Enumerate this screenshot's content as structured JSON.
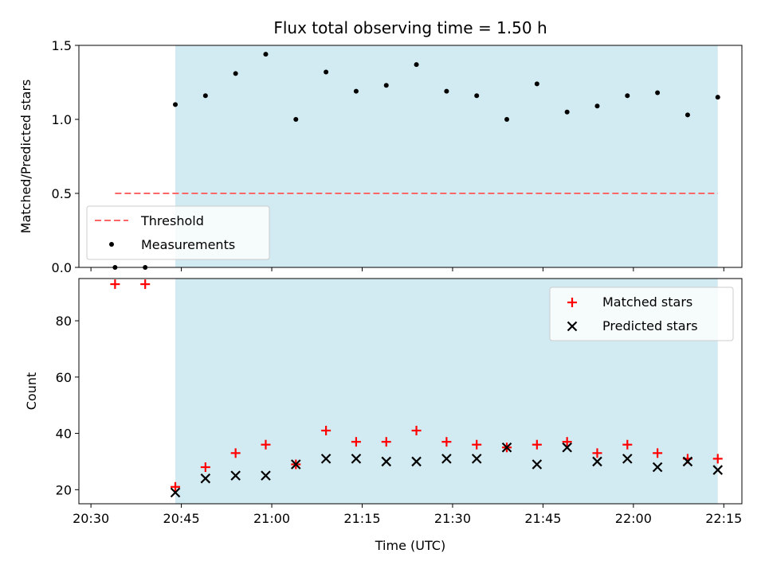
{
  "figure": {
    "title": "Flux total observing time = 1.50 h",
    "xlabel": "Time (UTC)"
  },
  "colors": {
    "span": "#add8e6",
    "threshold": "#ff6666",
    "measurements": "#000000",
    "matched": "#ff0000",
    "predicted": "#000000"
  },
  "chart_data": [
    {
      "type": "scatter",
      "ylabel": "Matched/Predicted stars",
      "xlim": [
        "20:28",
        "22:18"
      ],
      "ylim": [
        0,
        1.5
      ],
      "yticks": [
        "0.0",
        "0.5",
        "1.0",
        "1.5"
      ],
      "xticks": [
        "20:30",
        "20:45",
        "21:00",
        "21:15",
        "21:30",
        "21:45",
        "22:00",
        "22:15"
      ],
      "shaded_span": [
        "20:44",
        "22:14"
      ],
      "threshold": {
        "name": "Threshold",
        "value": 0.5,
        "x": [
          "20:34",
          "22:14"
        ]
      },
      "series": [
        {
          "name": "Measurements",
          "x": [
            "20:34",
            "20:39",
            "20:44",
            "20:49",
            "20:54",
            "20:59",
            "21:04",
            "21:09",
            "21:14",
            "21:19",
            "21:24",
            "21:29",
            "21:34",
            "21:39",
            "21:44",
            "21:49",
            "21:54",
            "21:59",
            "22:04",
            "22:09",
            "22:14"
          ],
          "values": [
            0.0,
            0.0,
            1.1,
            1.16,
            1.31,
            1.44,
            1.0,
            1.32,
            1.19,
            1.23,
            1.37,
            1.19,
            1.16,
            1.0,
            1.24,
            1.05,
            1.09,
            1.16,
            1.18,
            1.03,
            1.15
          ]
        }
      ],
      "legend": {
        "position": "lower-left",
        "entries": [
          "Threshold",
          "Measurements"
        ]
      }
    },
    {
      "type": "scatter",
      "ylabel": "Count",
      "xlim": [
        "20:28",
        "22:18"
      ],
      "ylim": [
        15,
        95
      ],
      "yticks": [
        "20",
        "40",
        "60",
        "80"
      ],
      "xticks": [
        "20:30",
        "20:45",
        "21:00",
        "21:15",
        "21:30",
        "21:45",
        "22:00",
        "22:15"
      ],
      "shaded_span": [
        "20:44",
        "22:14"
      ],
      "series": [
        {
          "name": "Matched stars",
          "x": [
            "20:34",
            "20:39",
            "20:44",
            "20:49",
            "20:54",
            "20:59",
            "21:04",
            "21:09",
            "21:14",
            "21:19",
            "21:24",
            "21:29",
            "21:34",
            "21:39",
            "21:44",
            "21:49",
            "21:54",
            "21:59",
            "22:04",
            "22:09",
            "22:14"
          ],
          "values": [
            93,
            93,
            21,
            28,
            33,
            36,
            29,
            41,
            37,
            37,
            41,
            37,
            36,
            35,
            36,
            37,
            33,
            36,
            33,
            31,
            31
          ]
        },
        {
          "name": "Predicted stars",
          "x": [
            "20:44",
            "20:49",
            "20:54",
            "20:59",
            "21:04",
            "21:09",
            "21:14",
            "21:19",
            "21:24",
            "21:29",
            "21:34",
            "21:39",
            "21:44",
            "21:49",
            "21:54",
            "21:59",
            "22:04",
            "22:09",
            "22:14"
          ],
          "values": [
            19,
            24,
            25,
            25,
            29,
            31,
            31,
            30,
            30,
            31,
            31,
            35,
            29,
            35,
            30,
            31,
            28,
            30,
            27
          ]
        }
      ],
      "legend": {
        "position": "upper-right",
        "entries": [
          "Matched stars",
          "Predicted stars"
        ]
      }
    }
  ]
}
